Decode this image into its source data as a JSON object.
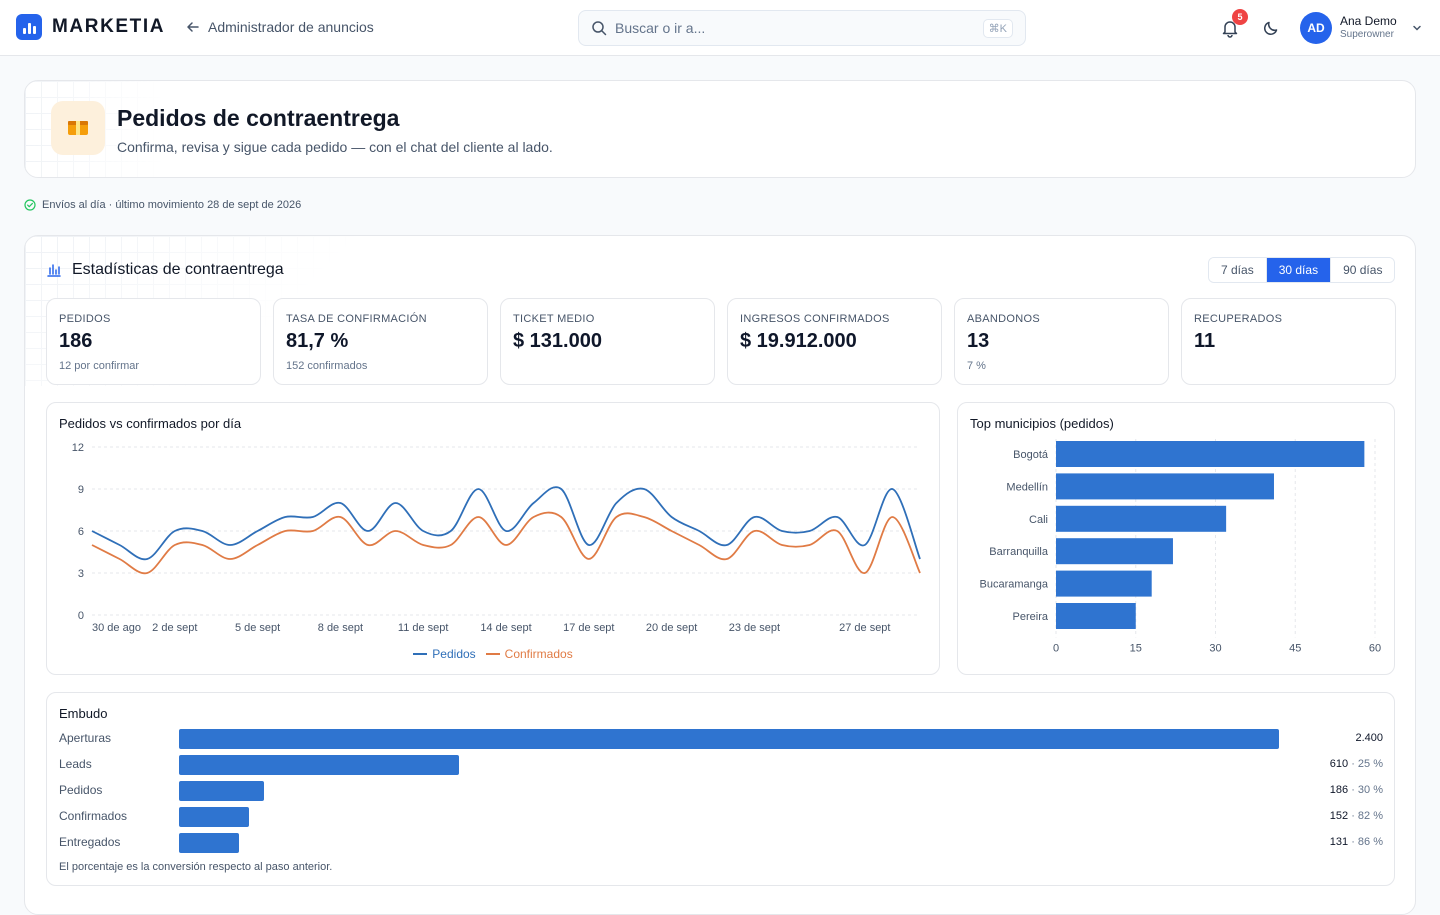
{
  "brand": {
    "name": "MARKETIA"
  },
  "nav": {
    "back_label": "Administrador de anuncios"
  },
  "search": {
    "placeholder": "Buscar o ir a...",
    "shortcut": "⌘K"
  },
  "notifications": {
    "count": "5"
  },
  "user": {
    "initials": "AD",
    "name": "Ana Demo",
    "role": "Superowner"
  },
  "page": {
    "title": "Pedidos de contraentrega",
    "subtitle": "Confirma, revisa y sigue cada pedido — con el chat del cliente al lado.",
    "status": "Envíos al día · último movimiento 28 de sept de 2026"
  },
  "stats": {
    "title": "Estadísticas de contraentrega",
    "ranges": [
      "7 días",
      "30 días",
      "90 días"
    ],
    "active_range": "30 días",
    "kpis": [
      {
        "label": "PEDIDOS",
        "value": "186",
        "sub": "12 por confirmar"
      },
      {
        "label": "TASA DE CONFIRMACIÓN",
        "value": "81,7 %",
        "sub": "152 confirmados"
      },
      {
        "label": "TICKET MEDIO",
        "value": "$ 131.000",
        "sub": ""
      },
      {
        "label": "INGRESOS CONFIRMADOS",
        "value": "$ 19.912.000",
        "sub": ""
      },
      {
        "label": "ABANDONOS",
        "value": "13",
        "sub": "7 %"
      },
      {
        "label": "RECUPERADOS",
        "value": "11",
        "sub": ""
      }
    ]
  },
  "colors": {
    "primary": "#2563eb",
    "pedidos": "#2f6fb8",
    "confirmados": "#e07b45",
    "bar": "#2f74d0",
    "badge": "#ef4444",
    "hero_icon": "#f59e0b"
  },
  "chart_data": [
    {
      "type": "line",
      "title": "Pedidos vs confirmados por día",
      "x_tick_labels": [
        "30 de ago",
        "2 de sept",
        "5 de sept",
        "8 de sept",
        "11 de sept",
        "14 de sept",
        "17 de sept",
        "20 de sept",
        "23 de sept",
        "27 de sept"
      ],
      "x_tick_index": [
        0,
        3,
        6,
        9,
        12,
        15,
        18,
        21,
        24,
        28
      ],
      "ylim": [
        0,
        12
      ],
      "y_ticks": [
        0,
        3,
        6,
        9,
        12
      ],
      "grid": true,
      "legend": "bottom-center",
      "series": [
        {
          "name": "Pedidos",
          "values": [
            6,
            5,
            4,
            6,
            6,
            5,
            6,
            7,
            7,
            8,
            6,
            8,
            6,
            6,
            9,
            6,
            8,
            9,
            5,
            8,
            9,
            7,
            6,
            5,
            7,
            6,
            6,
            7,
            5,
            9,
            4
          ]
        },
        {
          "name": "Confirmados",
          "values": [
            5,
            4,
            3,
            5,
            5,
            4,
            5,
            6,
            6,
            7,
            5,
            6,
            5,
            5,
            7,
            5,
            7,
            7,
            4,
            7,
            7,
            6,
            5,
            4,
            6,
            5,
            5,
            6,
            3,
            7,
            3
          ]
        }
      ]
    },
    {
      "type": "bar",
      "orientation": "horizontal",
      "title": "Top municipios (pedidos)",
      "categories": [
        "Bogotá",
        "Medellín",
        "Cali",
        "Barranquilla",
        "Bucaramanga",
        "Pereira"
      ],
      "values": [
        58,
        41,
        32,
        22,
        18,
        15
      ],
      "xlim": [
        0,
        60
      ],
      "x_ticks": [
        0,
        15,
        30,
        45,
        60
      ],
      "grid": true
    },
    {
      "type": "bar",
      "orientation": "horizontal",
      "title": "Embudo",
      "categories": [
        "Aperturas",
        "Leads",
        "Pedidos",
        "Confirmados",
        "Entregados"
      ],
      "values": [
        2400,
        610,
        186,
        152,
        131
      ],
      "value_labels": [
        "2.400",
        "610",
        "186",
        "152",
        "131"
      ],
      "conversion_labels": [
        "",
        "25 %",
        "30 %",
        "82 %",
        "86 %"
      ],
      "note": "El porcentaje es la conversión respecto al paso anterior."
    }
  ]
}
